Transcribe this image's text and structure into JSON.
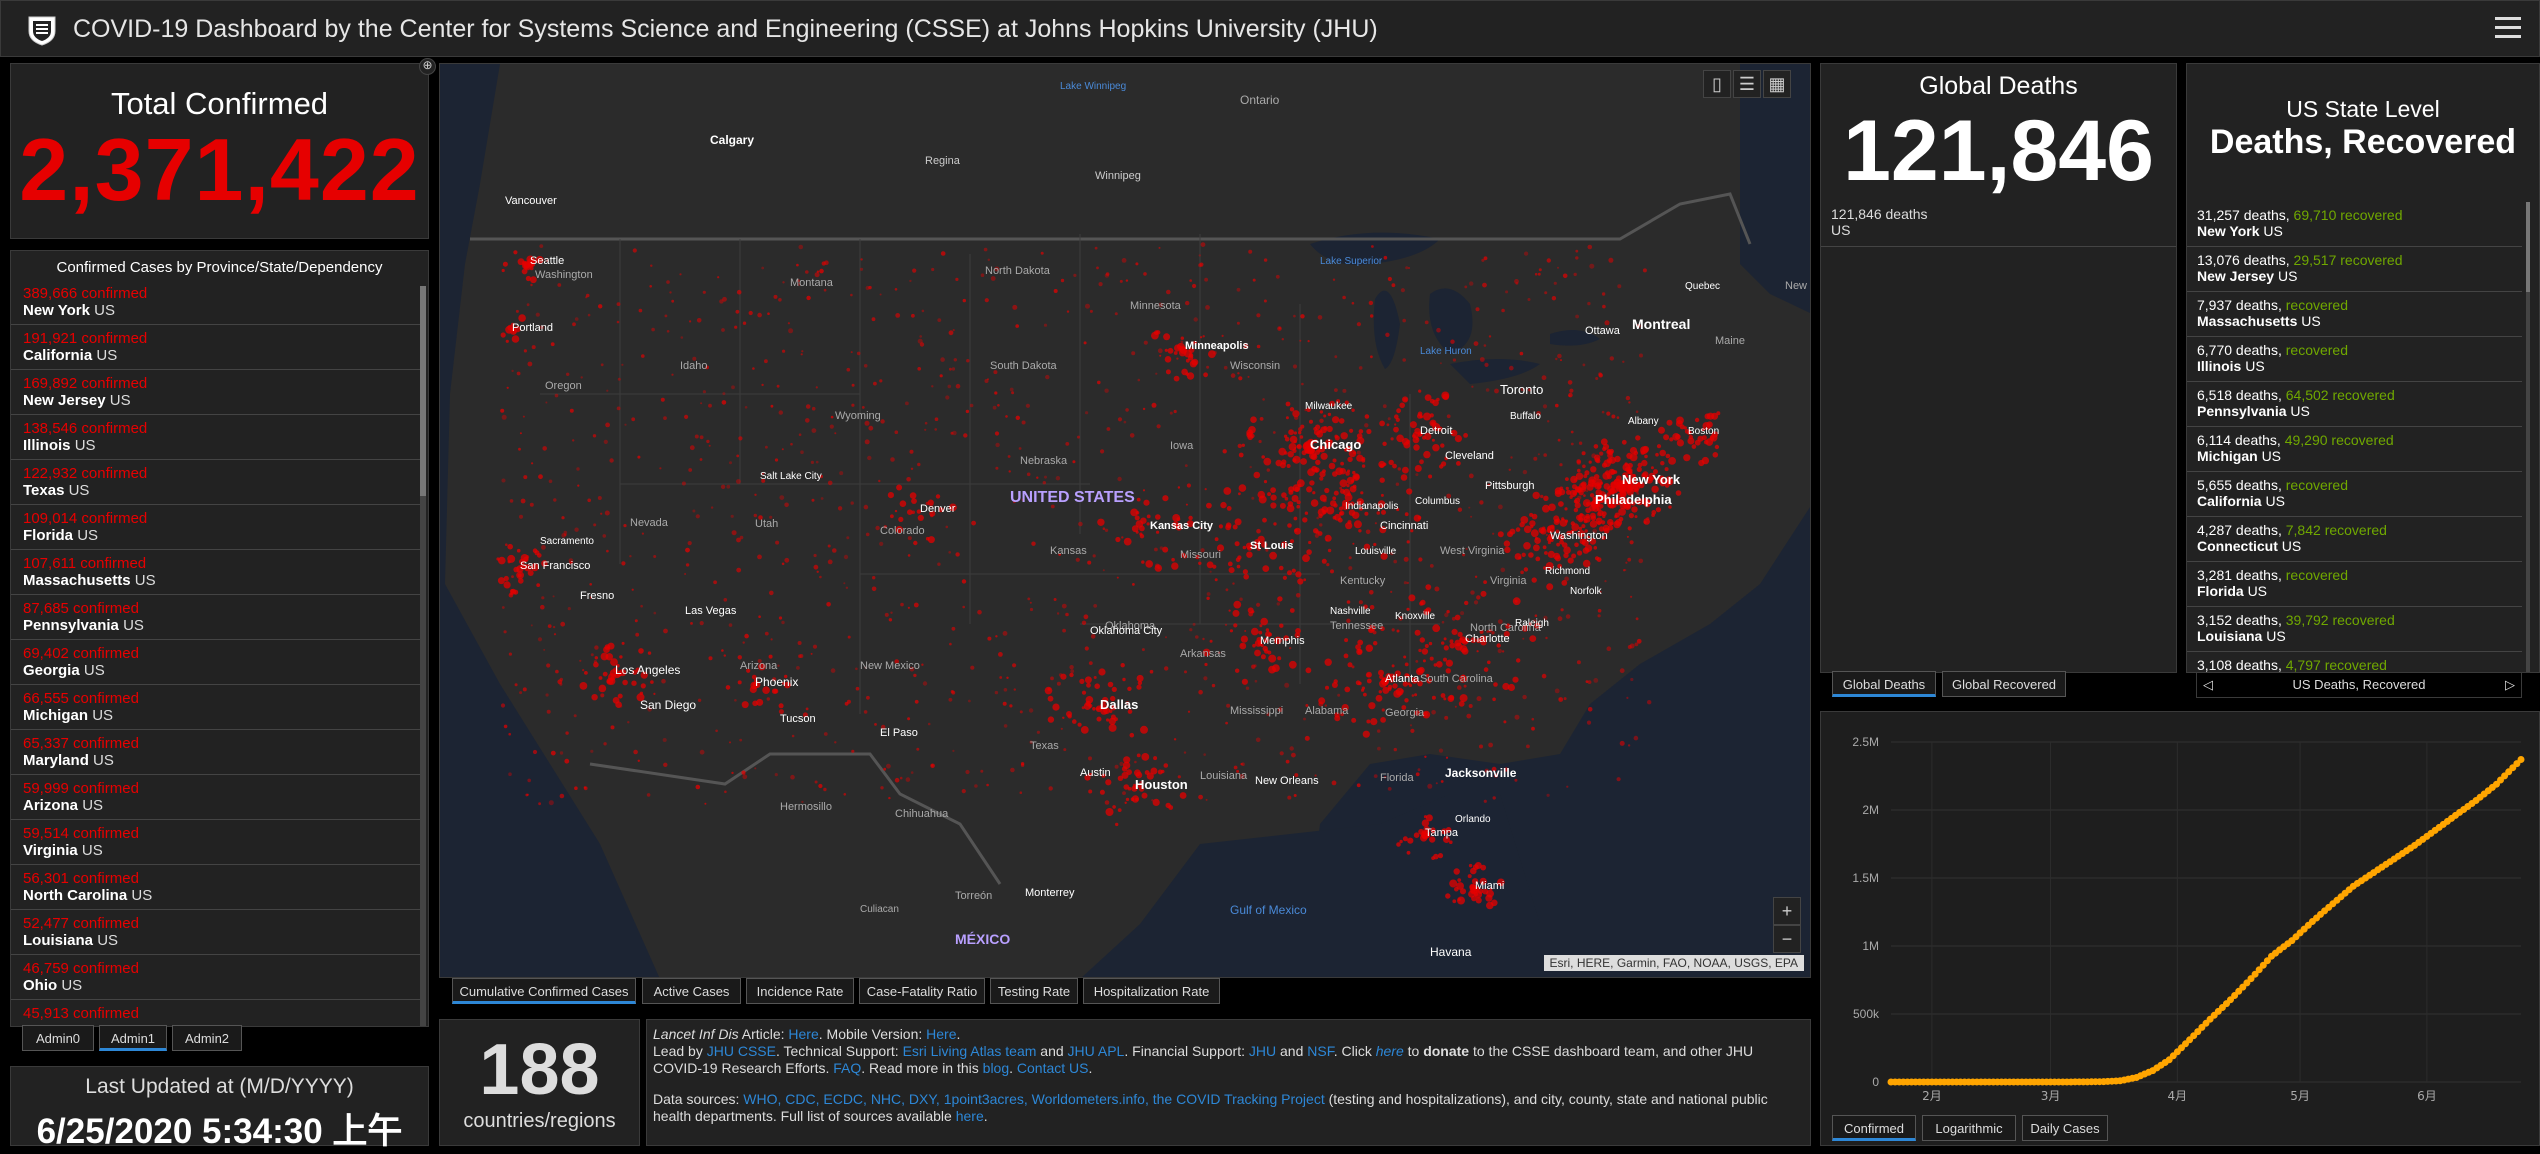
{
  "header": {
    "title": "COVID-19 Dashboard by the Center for Systems Science and Engineering (CSSE) at Johns Hopkins University (JHU)"
  },
  "total": {
    "label": "Total Confirmed",
    "value": "2,371,422"
  },
  "list": {
    "heading": "Confirmed Cases by Province/State/Dependency",
    "items": [
      {
        "count": "389,666 confirmed",
        "name": "New York",
        "region": "US"
      },
      {
        "count": "191,921 confirmed",
        "name": "California",
        "region": "US"
      },
      {
        "count": "169,892 confirmed",
        "name": "New Jersey",
        "region": "US"
      },
      {
        "count": "138,546 confirmed",
        "name": "Illinois",
        "region": "US"
      },
      {
        "count": "122,932 confirmed",
        "name": "Texas",
        "region": "US"
      },
      {
        "count": "109,014 confirmed",
        "name": "Florida",
        "region": "US"
      },
      {
        "count": "107,611 confirmed",
        "name": "Massachusetts",
        "region": "US"
      },
      {
        "count": "87,685 confirmed",
        "name": "Pennsylvania",
        "region": "US"
      },
      {
        "count": "69,402 confirmed",
        "name": "Georgia",
        "region": "US"
      },
      {
        "count": "66,555 confirmed",
        "name": "Michigan",
        "region": "US"
      },
      {
        "count": "65,337 confirmed",
        "name": "Maryland",
        "region": "US"
      },
      {
        "count": "59,999 confirmed",
        "name": "Arizona",
        "region": "US"
      },
      {
        "count": "59,514 confirmed",
        "name": "Virginia",
        "region": "US"
      },
      {
        "count": "56,301 confirmed",
        "name": "North Carolina",
        "region": "US"
      },
      {
        "count": "52,477 confirmed",
        "name": "Louisiana",
        "region": "US"
      },
      {
        "count": "46,759 confirmed",
        "name": "Ohio",
        "region": "US"
      },
      {
        "count": "45,913 confirmed",
        "name": "",
        "region": ""
      }
    ],
    "tabs": [
      "Admin0",
      "Admin1",
      "Admin2"
    ]
  },
  "updated": {
    "label": "Last Updated at (M/D/YYYY)",
    "value": "6/25/2020 5:34:30 上午"
  },
  "map": {
    "tabs": [
      "Cumulative Confirmed Cases",
      "Active Cases",
      "Incidence Rate",
      "Case-Fatality Ratio",
      "Testing Rate",
      "Hospitalization Rate"
    ],
    "attribution": "Esri, HERE, Garmin, FAO, NOAA, USGS, EPA",
    "zoom_in": "+",
    "zoom_out": "−",
    "labels": {
      "country": "UNITED STATES",
      "mexico": "MÉXICO",
      "gulf": "Gulf of Mexico",
      "lake_winnipeg": "Lake Winnipeg",
      "ontario": "Ontario",
      "calgary": "Calgary",
      "regina": "Regina",
      "winnipeg": "Winnipeg",
      "vancouver": "Vancouver",
      "seattle": "Seattle",
      "washington": "Washington",
      "portland": "Portland",
      "oregon": "Oregon",
      "idaho": "Idaho",
      "montana": "Montana",
      "north_dakota": "North Dakota",
      "south_dakota": "South Dakota",
      "minnesota": "Minnesota",
      "wyoming": "Wyoming",
      "nevada": "Nevada",
      "utah": "Utah",
      "colorado": "Colorado",
      "nebraska": "Nebraska",
      "kansas": "Kansas",
      "iowa": "Iowa",
      "missouri": "Missouri",
      "wisconsin": "Wisconsin",
      "lake_superior": "Lake Superior",
      "lake_huron": "Lake Huron",
      "minneapolis": "Minneapolis",
      "milwaukee": "Milwaukee",
      "chicago": "Chicago",
      "detroit": "Detroit",
      "toronto": "Toronto",
      "ottawa": "Ottawa",
      "montreal": "Montreal",
      "quebec": "Quebec",
      "maine": "Maine",
      "new_brunswick": "New Brunswick",
      "buffalo": "Buffalo",
      "albany": "Albany",
      "boston": "Boston",
      "new_york": "New York",
      "philadelphia": "Philadelphia",
      "pittsburgh": "Pittsburgh",
      "cleveland": "Cleveland",
      "columbus": "Columbus",
      "indianapolis": "Indianapolis",
      "cincinnati": "Cincinnati",
      "washington_dc": "Washington",
      "richmond": "Richmond",
      "norfolk": "Norfolk",
      "virginia": "Virginia",
      "west_virginia": "West Virginia",
      "kentucky": "Kentucky",
      "louisville": "Louisville",
      "st_louis": "St Louis",
      "kansas_city": "Kansas City",
      "salt_lake": "Salt Lake City",
      "denver": "Denver",
      "sacramento": "Sacramento",
      "san_francisco": "San Francisco",
      "fresno": "Fresno",
      "las_vegas": "Las Vegas",
      "los_angeles": "Los Angeles",
      "san_diego": "San Diego",
      "arizona": "Arizona",
      "phoenix": "Phoenix",
      "tucson": "Tucson",
      "new_mexico": "New Mexico",
      "el_paso": "El Paso",
      "oklahoma": "Oklahoma",
      "oklahoma_city": "Oklahoma City",
      "arkansas": "Arkansas",
      "memphis": "Memphis",
      "nashville": "Nashville",
      "tennessee": "Tennessee",
      "knoxville": "Knoxville",
      "north_carolina": "North Carolina",
      "raleigh": "Raleigh",
      "charlotte": "Charlotte",
      "south_carolina": "South Carolina",
      "atlanta": "Atlanta",
      "georgia": "Georgia",
      "alabama": "Alabama",
      "mississippi": "Mississippi",
      "dallas": "Dallas",
      "texas": "Texas",
      "austin": "Austin",
      "houston": "Houston",
      "louisiana": "Louisiana",
      "new_orleans": "New Orleans",
      "jacksonville": "Jacksonville",
      "florida": "Florida",
      "orlando": "Orlando",
      "tampa": "Tampa",
      "miami": "Miami",
      "havana": "Havana",
      "hermosillo": "Hermosillo",
      "chihuahua": "Chihuahua",
      "torreon": "Torreón",
      "monterrey": "Monterrey",
      "culiacan": "Culiacan"
    }
  },
  "countries": {
    "value": "188",
    "label": "countries/regions"
  },
  "info": {
    "l1_a": "Lancet Inf Dis",
    "l1_b": " Article: ",
    "l1_c": "Here",
    "l1_d": ". Mobile Version: ",
    "l1_e": "Here",
    "l1_f": ".",
    "l2_a": "Lead by ",
    "l2_b": "JHU CSSE",
    "l2_c": ". Technical Support: ",
    "l2_d": "Esri Living Atlas team",
    "l2_e": " and ",
    "l2_f": "JHU APL",
    "l2_g": ". Financial Support: ",
    "l2_h": "JHU",
    "l2_i": " and ",
    "l2_j": "NSF",
    "l2_k": ". Click ",
    "l2_l": "here",
    "l2_m": " to ",
    "l2_n": "donate",
    "l2_o": " to the CSSE dashboard team, and other JHU",
    "l3_a": "COVID-19 Research Efforts. ",
    "l3_b": "FAQ",
    "l3_c": ". Read more in this ",
    "l3_d": "blog",
    "l3_e": ". ",
    "l3_f": "Contact US",
    "l3_g": ".",
    "l4_a": "Data sources: ",
    "l4_b": "WHO, CDC, ECDC, NHC, DXY, 1point3acres, Worldometers.info, the COVID Tracking Project",
    "l4_c": " (testing and hospitalizations), and city, county, state and national public",
    "l5_a": "health departments. Full list of sources available ",
    "l5_b": "here",
    "l5_c": "."
  },
  "deaths": {
    "label": "Global Deaths",
    "value": "121,846",
    "sub_value": "121,846",
    "sub_unit": "deaths",
    "sub_region": "US",
    "tabs": [
      "Global Deaths",
      "Global Recovered"
    ]
  },
  "us": {
    "title1": "US State Level",
    "title2": "Deaths, Recovered",
    "items": [
      {
        "deaths": "31,257 deaths,",
        "rec": "69,710",
        "rec_label": "recovered",
        "name": "New York",
        "region": "US"
      },
      {
        "deaths": "13,076 deaths,",
        "rec": "29,517",
        "rec_label": "recovered",
        "name": "New Jersey",
        "region": "US"
      },
      {
        "deaths": "7,937 deaths,",
        "rec": "",
        "rec_label": "recovered",
        "name": "Massachusetts",
        "region": "US"
      },
      {
        "deaths": "6,770 deaths,",
        "rec": "",
        "rec_label": "recovered",
        "name": "Illinois",
        "region": "US"
      },
      {
        "deaths": "6,518 deaths,",
        "rec": "64,502",
        "rec_label": "recovered",
        "name": "Pennsylvania",
        "region": "US"
      },
      {
        "deaths": "6,114 deaths,",
        "rec": "49,290",
        "rec_label": "recovered",
        "name": "Michigan",
        "region": "US"
      },
      {
        "deaths": "5,655 deaths,",
        "rec": "",
        "rec_label": "recovered",
        "name": "California",
        "region": "US"
      },
      {
        "deaths": "4,287 deaths,",
        "rec": "7,842",
        "rec_label": "recovered",
        "name": "Connecticut",
        "region": "US"
      },
      {
        "deaths": "3,281 deaths,",
        "rec": "",
        "rec_label": "recovered",
        "name": "Florida",
        "region": "US"
      },
      {
        "deaths": "3,152 deaths,",
        "rec": "39,792",
        "rec_label": "recovered",
        "name": "Louisiana",
        "region": "US"
      },
      {
        "deaths": "3,108 deaths,",
        "rec": "4,797",
        "rec_label": "recovered",
        "name": "",
        "region": ""
      }
    ],
    "pager_label": "US Deaths, Recovered"
  },
  "chart_tabs": [
    "Confirmed",
    "Logarithmic",
    "Daily Cases"
  ],
  "chart_data": {
    "type": "scatter",
    "title": "",
    "xlabel": "",
    "ylabel": "",
    "x_ticks": [
      "2月",
      "3月",
      "4月",
      "5月",
      "6月"
    ],
    "y_ticks": [
      "0",
      "500k",
      "1M",
      "1.5M",
      "2M",
      "2.5M"
    ],
    "ylim": [
      0,
      2500000
    ],
    "x_range_days": [
      "2020-01-22",
      "2020-06-24"
    ],
    "series": [
      {
        "color": "#ffa500",
        "x": [
          "2020-01-22",
          "2020-02-15",
          "2020-02-29",
          "2020-03-05",
          "2020-03-10",
          "2020-03-14",
          "2020-03-18",
          "2020-03-22",
          "2020-03-26",
          "2020-03-30",
          "2020-04-04",
          "2020-04-09",
          "2020-04-14",
          "2020-04-19",
          "2020-04-24",
          "2020-04-29",
          "2020-05-04",
          "2020-05-09",
          "2020-05-14",
          "2020-05-19",
          "2020-05-24",
          "2020-05-29",
          "2020-06-03",
          "2020-06-08",
          "2020-06-13",
          "2020-06-18",
          "2020-06-24"
        ],
        "y": [
          1,
          15,
          70,
          200,
          1000,
          3000,
          9000,
          33000,
          84000,
          163000,
          310000,
          462000,
          605000,
          760000,
          925000,
          1040000,
          1180000,
          1310000,
          1440000,
          1540000,
          1640000,
          1740000,
          1850000,
          1960000,
          2070000,
          2190000,
          2371422
        ]
      }
    ]
  },
  "colors": {
    "confirmed": "#e60000",
    "recovered": "#70a800",
    "link": "#2d87d6",
    "curve": "#ffa500",
    "dot": "#e60000"
  }
}
